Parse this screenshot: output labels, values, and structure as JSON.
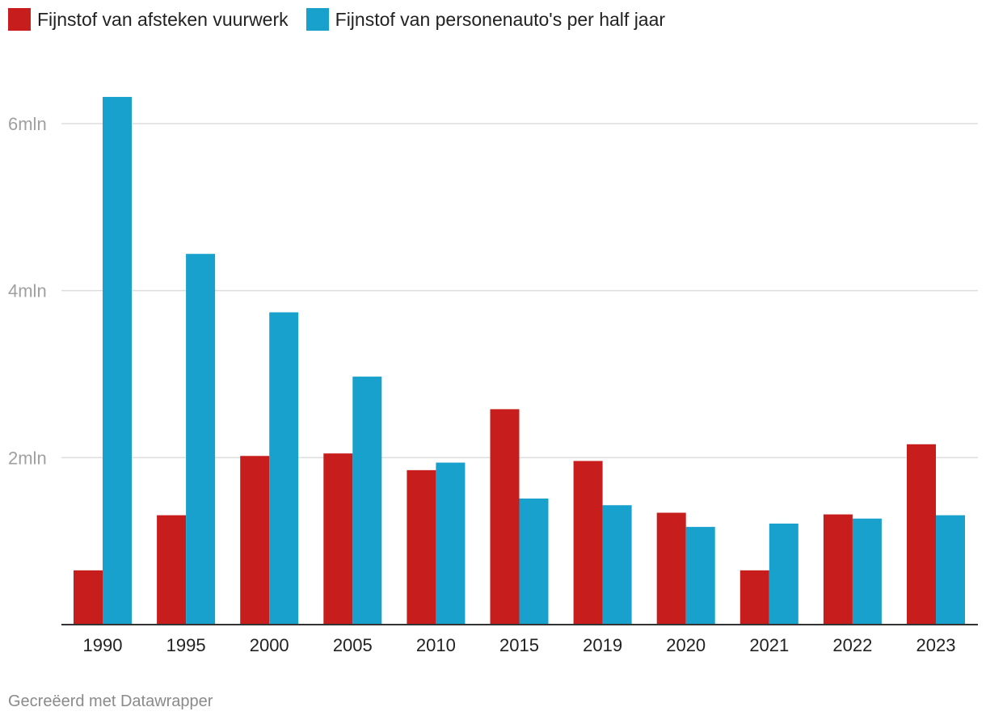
{
  "chart_data": {
    "type": "bar",
    "categories": [
      "1990",
      "1995",
      "2000",
      "2005",
      "2010",
      "2015",
      "2019",
      "2020",
      "2021",
      "2022",
      "2023"
    ],
    "series": [
      {
        "name": "Fijnstof van afsteken vuurwerk",
        "color": "#c71e1d",
        "values": [
          650000,
          1310000,
          2020000,
          2050000,
          1850000,
          2580000,
          1960000,
          1340000,
          650000,
          1320000,
          2160000
        ]
      },
      {
        "name": "Fijnstof van personenauto's per half jaar",
        "color": "#18a1cd",
        "values": [
          6320000,
          4440000,
          3740000,
          2970000,
          1940000,
          1510000,
          1430000,
          1170000,
          1210000,
          1270000,
          1310000
        ]
      }
    ],
    "yticks": [
      {
        "value": 2000000,
        "label": "2mln"
      },
      {
        "value": 4000000,
        "label": "4mln"
      },
      {
        "value": 6000000,
        "label": "6mln"
      }
    ],
    "ylim": [
      0,
      6500000
    ],
    "grid": true,
    "legend": "top-left",
    "xlabel": "",
    "ylabel": ""
  },
  "legend": {
    "series1_label": "Fijnstof van afsteken vuurwerk",
    "series2_label": "Fijnstof van personenauto's per half jaar"
  },
  "footer": {
    "credit": "Gecreëerd met Datawrapper"
  },
  "colors": {
    "red": "#c71e1d",
    "blue": "#18a1cd",
    "grid": "#dddddd",
    "axis": "#333333"
  }
}
